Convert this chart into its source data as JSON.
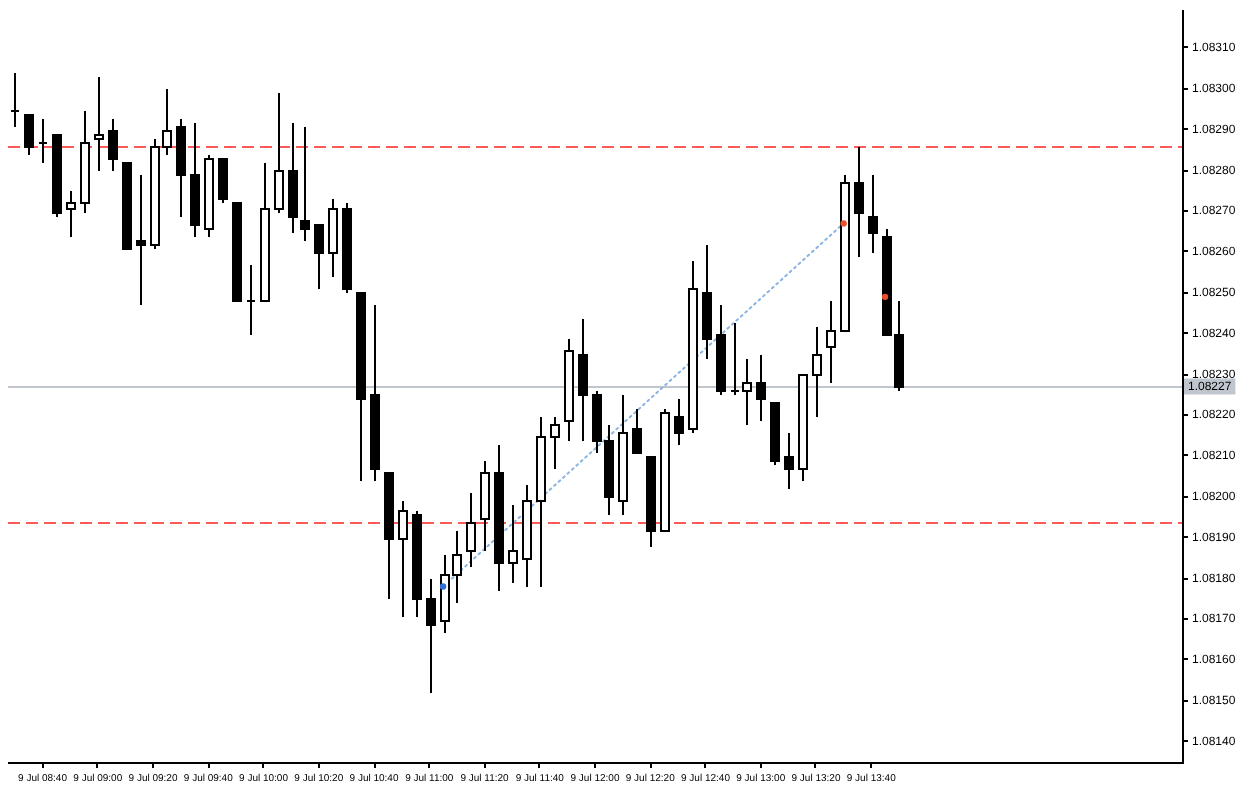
{
  "chart_data": {
    "type": "candlestick",
    "ylim": [
      1.08135,
      1.08319
    ],
    "yticks": [
      {
        "value": 1.0814,
        "label": "1.08140"
      },
      {
        "value": 1.0815,
        "label": "1.08150"
      },
      {
        "value": 1.0816,
        "label": "1.08160"
      },
      {
        "value": 1.0817,
        "label": "1.08170"
      },
      {
        "value": 1.0818,
        "label": "1.08180"
      },
      {
        "value": 1.0819,
        "label": "1.08190"
      },
      {
        "value": 1.082,
        "label": "1.08200"
      },
      {
        "value": 1.0821,
        "label": "1.08210"
      },
      {
        "value": 1.0822,
        "label": "1.08220"
      },
      {
        "value": 1.0823,
        "label": "1.08230"
      },
      {
        "value": 1.0824,
        "label": "1.08240"
      },
      {
        "value": 1.0825,
        "label": "1.08250"
      },
      {
        "value": 1.0826,
        "label": "1.08260"
      },
      {
        "value": 1.0827,
        "label": "1.08270"
      },
      {
        "value": 1.0828,
        "label": "1.08280"
      },
      {
        "value": 1.0829,
        "label": "1.08290"
      },
      {
        "value": 1.083,
        "label": "1.08300"
      },
      {
        "value": 1.0831,
        "label": "1.08310"
      }
    ],
    "xlim": [
      "--07-09T08:27:30",
      "--07-09T15:32:30"
    ],
    "xticks": [
      {
        "value": "--07-09T08:40",
        "label": "9 Jul 08:40"
      },
      {
        "value": "--07-09T09:00",
        "label": "9 Jul 09:00"
      },
      {
        "value": "--07-09T09:20",
        "label": "9 Jul 09:20"
      },
      {
        "value": "--07-09T09:40",
        "label": "9 Jul 09:40"
      },
      {
        "value": "--07-09T10:00",
        "label": "9 Jul 10:00"
      },
      {
        "value": "--07-09T10:20",
        "label": "9 Jul 10:20"
      },
      {
        "value": "--07-09T10:40",
        "label": "9 Jul 10:40"
      },
      {
        "value": "--07-09T11:00",
        "label": "9 Jul 11:00"
      },
      {
        "value": "--07-09T11:20",
        "label": "9 Jul 11:20"
      },
      {
        "value": "--07-09T11:40",
        "label": "9 Jul 11:40"
      },
      {
        "value": "--07-09T12:00",
        "label": "9 Jul 12:00"
      },
      {
        "value": "--07-09T12:20",
        "label": "9 Jul 12:20"
      },
      {
        "value": "--07-09T12:40",
        "label": "9 Jul 12:40"
      },
      {
        "value": "--07-09T13:00",
        "label": "9 Jul 13:00"
      },
      {
        "value": "--07-09T13:20",
        "label": "9 Jul 13:20"
      },
      {
        "value": "--07-09T13:40",
        "label": "9 Jul 13:40"
      }
    ],
    "ref_lines": [
      {
        "axis": "y",
        "value": 1.08286,
        "color": "#ff5a5a",
        "line_style": "dashed"
      },
      {
        "axis": "y",
        "value": 1.08194,
        "color": "#ff5a5a",
        "line_style": "dashed"
      },
      {
        "axis": "y",
        "value": 1.08227,
        "label": "1.08227",
        "color": "#c0c6ce",
        "line_style": "solid"
      }
    ],
    "series": [
      {
        "type": "line",
        "x": [
          "--07-09T11:05",
          "--07-09T13:30"
        ],
        "values": [
          1.08178,
          1.08267
        ],
        "color": "#8ab4e0",
        "line_style": "dotted",
        "marker": "none"
      },
      {
        "color": "#000000",
        "x": [
          "--07-09T08:30",
          "--07-09T08:35",
          "--07-09T08:40",
          "--07-09T08:45",
          "--07-09T08:50",
          "--07-09T08:55",
          "--07-09T09:00",
          "--07-09T09:05",
          "--07-09T09:10",
          "--07-09T09:15",
          "--07-09T09:20",
          "--07-09T09:25",
          "--07-09T09:30",
          "--07-09T09:35",
          "--07-09T09:40",
          "--07-09T09:45",
          "--07-09T09:50",
          "--07-09T09:55",
          "--07-09T10:00",
          "--07-09T10:05",
          "--07-09T10:10",
          "--07-09T10:15",
          "--07-09T10:20",
          "--07-09T10:25",
          "--07-09T10:30",
          "--07-09T10:35",
          "--07-09T10:40",
          "--07-09T10:45",
          "--07-09T10:50",
          "--07-09T10:55",
          "--07-09T11:00",
          "--07-09T11:05",
          "--07-09T11:10",
          "--07-09T11:15",
          "--07-09T11:20",
          "--07-09T11:25",
          "--07-09T11:30",
          "--07-09T11:35",
          "--07-09T11:40",
          "--07-09T11:45",
          "--07-09T11:50",
          "--07-09T11:55",
          "--07-09T12:00",
          "--07-09T12:05",
          "--07-09T12:10",
          "--07-09T12:15",
          "--07-09T12:20",
          "--07-09T12:25",
          "--07-09T12:30",
          "--07-09T12:35",
          "--07-09T12:40",
          "--07-09T12:45",
          "--07-09T12:50",
          "--07-09T12:55",
          "--07-09T13:00",
          "--07-09T13:05",
          "--07-09T13:10",
          "--07-09T13:15",
          "--07-09T13:20",
          "--07-09T13:25",
          "--07-09T13:30",
          "--07-09T13:35",
          "--07-09T13:40",
          "--07-09T13:45",
          "--07-09T13:50"
        ],
        "ohlc": [
          [
            1.08295,
            1.08304,
            1.08291,
            1.08295
          ],
          [
            1.08294,
            1.08294,
            1.08284,
            1.08286
          ],
          [
            1.08287,
            1.08293,
            1.08282,
            1.08287
          ],
          [
            1.08289,
            1.08289,
            1.08269,
            1.0827
          ],
          [
            1.08271,
            1.08275,
            1.08264,
            1.08272
          ],
          [
            1.08272,
            1.08295,
            1.0827,
            1.08287
          ],
          [
            1.08288,
            1.08303,
            1.0828,
            1.08289
          ],
          [
            1.0829,
            1.08293,
            1.0828,
            1.08283
          ],
          [
            1.08282,
            1.08282,
            1.08261,
            1.08261
          ],
          [
            1.08263,
            1.08279,
            1.08247,
            1.08262
          ],
          [
            1.08262,
            1.08288,
            1.08261,
            1.08286
          ],
          [
            1.08286,
            1.083,
            1.08284,
            1.0829
          ],
          [
            1.08291,
            1.08293,
            1.08269,
            1.08279
          ],
          [
            1.08279,
            1.08292,
            1.08264,
            1.08267
          ],
          [
            1.08266,
            1.08284,
            1.08264,
            1.08283
          ],
          [
            1.08283,
            1.08283,
            1.08272,
            1.08273
          ],
          [
            1.08272,
            1.08272,
            1.08248,
            1.08248
          ],
          [
            1.08248,
            1.08257,
            1.0824,
            1.08248
          ],
          [
            1.08248,
            1.08282,
            1.08248,
            1.08271
          ],
          [
            1.08271,
            1.08299,
            1.0827,
            1.0828
          ],
          [
            1.0828,
            1.08292,
            1.08265,
            1.08269
          ],
          [
            1.08268,
            1.08291,
            1.08263,
            1.08266
          ],
          [
            1.08267,
            1.08267,
            1.08251,
            1.0826
          ],
          [
            1.0826,
            1.08273,
            1.08254,
            1.08271
          ],
          [
            1.08271,
            1.08272,
            1.0825,
            1.08251
          ],
          [
            1.0825,
            1.0825,
            1.08204,
            1.08224
          ],
          [
            1.08225,
            1.08247,
            1.08204,
            1.08207
          ],
          [
            1.08206,
            1.08206,
            1.08175,
            1.0819
          ],
          [
            1.0819,
            1.08199,
            1.08171,
            1.08197
          ],
          [
            1.08196,
            1.08197,
            1.08171,
            1.08175
          ],
          [
            1.08175,
            1.0818,
            1.08152,
            1.08169
          ],
          [
            1.0817,
            1.08186,
            1.08167,
            1.08181
          ],
          [
            1.08181,
            1.08192,
            1.08174,
            1.08186
          ],
          [
            1.08187,
            1.08201,
            1.08183,
            1.08194
          ],
          [
            1.08195,
            1.08209,
            1.08187,
            1.08206
          ],
          [
            1.08206,
            1.08213,
            1.08177,
            1.08184
          ],
          [
            1.08184,
            1.08198,
            1.08179,
            1.08187
          ],
          [
            1.08185,
            1.08203,
            1.08178,
            1.08199
          ],
          [
            1.08199,
            1.0822,
            1.08178,
            1.08215
          ],
          [
            1.08215,
            1.0822,
            1.08207,
            1.08218
          ],
          [
            1.08219,
            1.08239,
            1.08214,
            1.08236
          ],
          [
            1.08235,
            1.08244,
            1.08214,
            1.08225
          ],
          [
            1.08225,
            1.08226,
            1.08211,
            1.08214
          ],
          [
            1.08214,
            1.08218,
            1.08196,
            1.082
          ],
          [
            1.08199,
            1.08225,
            1.08196,
            1.08216
          ],
          [
            1.08217,
            1.08222,
            1.08211,
            1.08211
          ],
          [
            1.0821,
            1.0821,
            1.08188,
            1.08192
          ],
          [
            1.08192,
            1.08222,
            1.08192,
            1.08221
          ],
          [
            1.0822,
            1.08224,
            1.08213,
            1.08216
          ],
          [
            1.08217,
            1.08258,
            1.08216,
            1.08251
          ],
          [
            1.0825,
            1.08262,
            1.08234,
            1.08239
          ],
          [
            1.0824,
            1.08247,
            1.08225,
            1.08226
          ],
          [
            1.08226,
            1.08243,
            1.08225,
            1.08226
          ],
          [
            1.08226,
            1.08234,
            1.08218,
            1.08228
          ],
          [
            1.08228,
            1.08235,
            1.08219,
            1.08224
          ],
          [
            1.08223,
            1.08223,
            1.08208,
            1.08209
          ],
          [
            1.0821,
            1.08216,
            1.08202,
            1.08207
          ],
          [
            1.08207,
            1.0823,
            1.08204,
            1.0823
          ],
          [
            1.0823,
            1.08242,
            1.0822,
            1.08235
          ],
          [
            1.08237,
            1.08248,
            1.08228,
            1.08241
          ],
          [
            1.08241,
            1.08279,
            1.08241,
            1.08277
          ],
          [
            1.08277,
            1.08286,
            1.08259,
            1.0827
          ],
          [
            1.08269,
            1.08279,
            1.0826,
            1.08265
          ],
          [
            1.08264,
            1.08266,
            1.0824,
            1.0824
          ],
          [
            1.0824,
            1.08248,
            1.08226,
            1.08227
          ]
        ]
      },
      {
        "type": "scatter",
        "x": [
          "--07-09T11:05",
          "--07-09T13:30",
          "--07-09T13:45"
        ],
        "values": [
          1.08178,
          1.08267,
          1.08249
        ],
        "colors": [
          "#2f6fd6",
          "#e8502a",
          "#e8502a"
        ],
        "marker": "circle"
      }
    ]
  }
}
